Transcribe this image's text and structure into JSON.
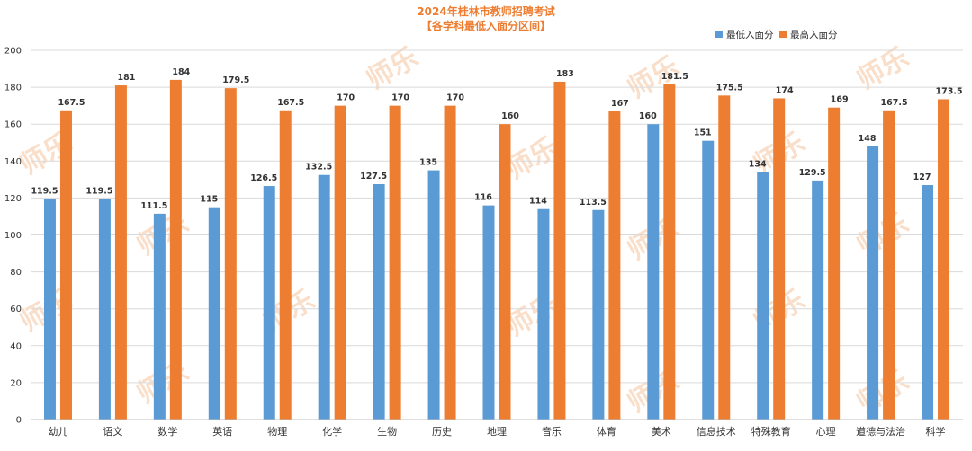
{
  "colors": {
    "min": "#5b9bd5",
    "max": "#ed7d31",
    "title": "#ed7d31",
    "grid": "#d9d9d9"
  },
  "watermark": "师乐",
  "chart_data": {
    "type": "bar",
    "title": "2024年桂林市教师招聘考试",
    "subtitle": "【各学科最低入面分区间】",
    "xlabel": "",
    "ylabel": "",
    "ylim": [
      0,
      200
    ],
    "yticks": [
      0,
      20,
      40,
      60,
      80,
      100,
      120,
      140,
      160,
      180,
      200
    ],
    "grid": true,
    "legend_position": "top-right",
    "categories": [
      "幼儿",
      "语文",
      "数学",
      "英语",
      "物理",
      "化学",
      "生物",
      "历史",
      "地理",
      "音乐",
      "体育",
      "美术",
      "信息技术",
      "特殊教育",
      "心理",
      "道德与法治",
      "科学"
    ],
    "series": [
      {
        "name": "最低入面分",
        "values": [
          119.5,
          119.5,
          111.5,
          115,
          126.5,
          132.5,
          127.5,
          135,
          116,
          114,
          113.5,
          160,
          151,
          134,
          129.5,
          148,
          127
        ]
      },
      {
        "name": "最高入面分",
        "values": [
          167.5,
          181,
          184,
          179.5,
          167.5,
          170,
          170,
          170,
          160,
          183,
          167,
          181.5,
          175.5,
          174,
          169,
          167.5,
          173.5
        ]
      }
    ]
  }
}
